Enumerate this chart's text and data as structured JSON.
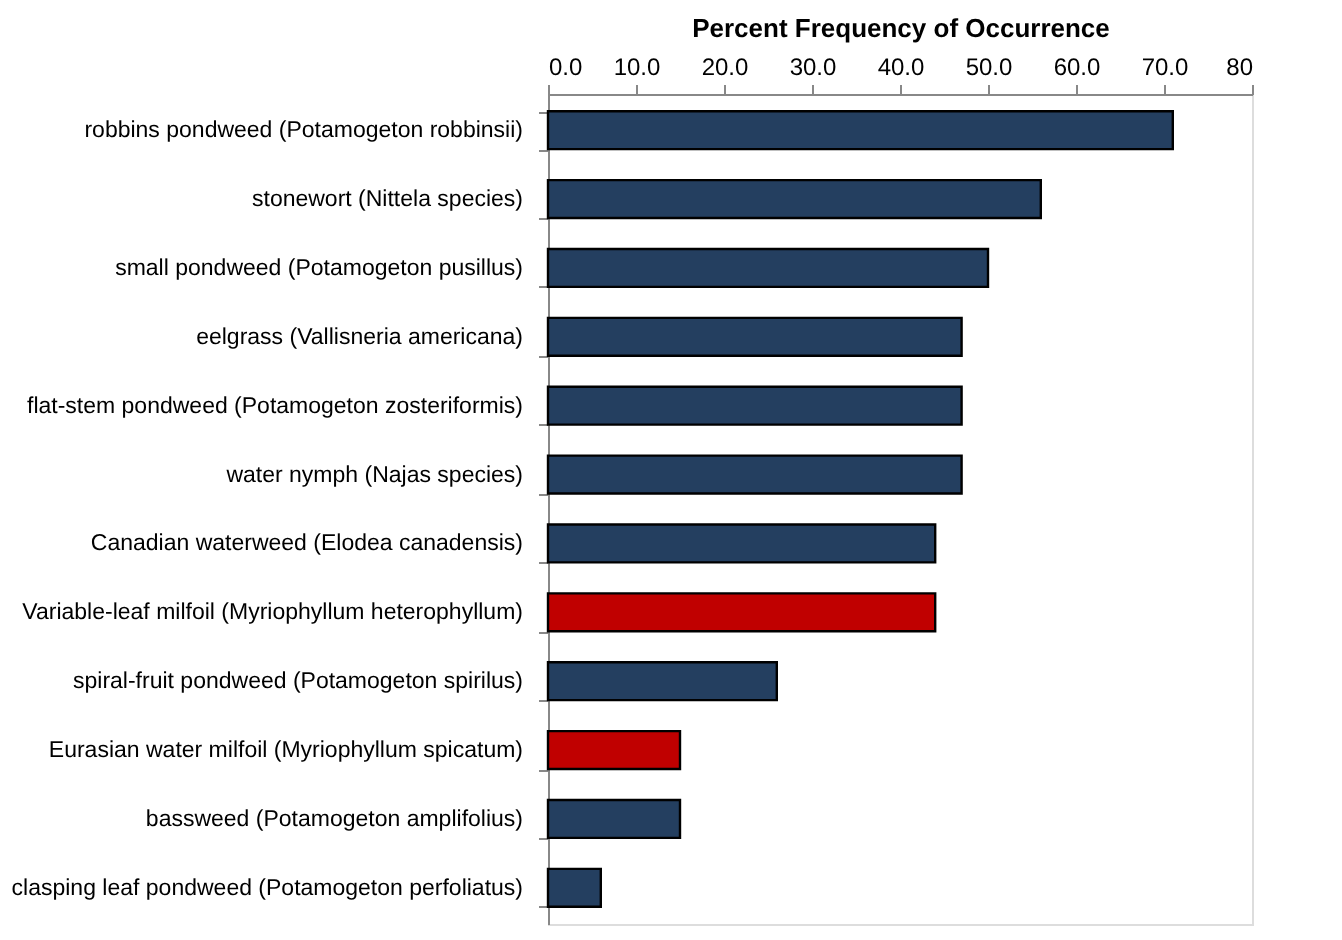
{
  "chart_data": {
    "type": "bar",
    "orientation": "horizontal",
    "xlabel": "Percent Frequency of Occurrence",
    "categories": [
      "robbins pondweed (Potamogeton robbinsii)",
      "stonewort (Nittela species)",
      "small pondweed (Potamogeton pusillus)",
      "eelgrass (Vallisneria americana)",
      "flat-stem pondweed (Potamogeton zosteriformis)",
      "water nymph (Najas species)",
      "Canadian waterweed (Elodea canadensis)",
      "Variable-leaf milfoil (Myriophyllum heterophyllum)",
      "spiral-fruit pondweed (Potamogeton spirilus)",
      "Eurasian water milfoil (Myriophyllum spicatum)",
      "bassweed (Potamogeton amplifolius)",
      "clasping leaf pondweed (Potamogeton perfoliatus)"
    ],
    "values": [
      71,
      56,
      50,
      47,
      47,
      47,
      44,
      44,
      26,
      15,
      15,
      6
    ],
    "colors": [
      "#243f60",
      "#243f60",
      "#243f60",
      "#243f60",
      "#243f60",
      "#243f60",
      "#243f60",
      "#c00000",
      "#243f60",
      "#c00000",
      "#243f60",
      "#243f60"
    ],
    "xlim": [
      0,
      80
    ],
    "xticks": [
      {
        "value": 0,
        "label": "0.0"
      },
      {
        "value": 10,
        "label": "10.0"
      },
      {
        "value": 20,
        "label": "20.0"
      },
      {
        "value": 30,
        "label": "30.0"
      },
      {
        "value": 40,
        "label": "40.0"
      },
      {
        "value": 50,
        "label": "50.0"
      },
      {
        "value": 60,
        "label": "60.0"
      },
      {
        "value": 70,
        "label": "70.0"
      },
      80
    ],
    "grid": false
  }
}
